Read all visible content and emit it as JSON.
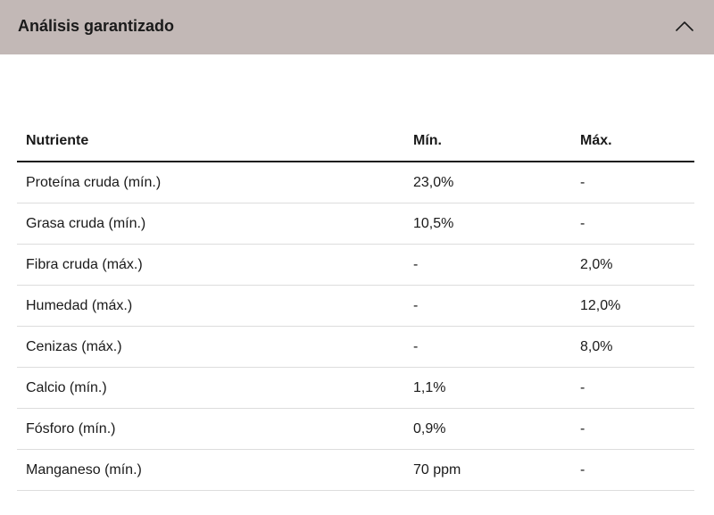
{
  "accordion": {
    "title": "Análisis garantizado",
    "expanded": true,
    "toggle_icon": "chevron-up-icon",
    "background_color": "#c2b8b6"
  },
  "table": {
    "headers": [
      "Nutriente",
      "Mín.",
      "Máx."
    ],
    "rows": [
      [
        "Proteína cruda (mín.)",
        "23,0%",
        "-"
      ],
      [
        "Grasa cruda (mín.)",
        "10,5%",
        "-"
      ],
      [
        "Fibra cruda (máx.)",
        "-",
        "2,0%"
      ],
      [
        "Humedad (máx.)",
        "-",
        "12,0%"
      ],
      [
        "Cenizas (máx.)",
        "-",
        "8,0%"
      ],
      [
        "Calcio (mín.)",
        "1,1%",
        "-"
      ],
      [
        "Fósforo (mín.)",
        "0,9%",
        "-"
      ],
      [
        "Manganeso (mín.)",
        "70 ppm",
        "-"
      ]
    ]
  }
}
